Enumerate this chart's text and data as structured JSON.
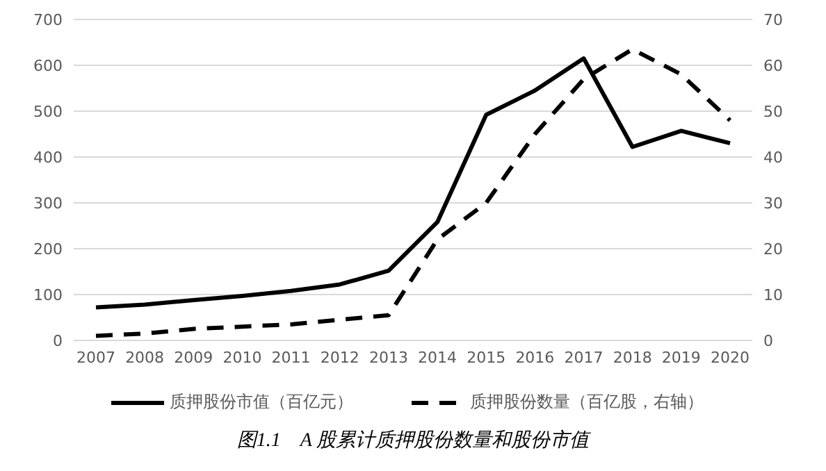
{
  "chart_data": {
    "type": "line",
    "title": "图1.1　A 股累计质押股份数量和股份市值",
    "categories": [
      "2007",
      "2008",
      "2009",
      "2010",
      "2011",
      "2012",
      "2013",
      "2014",
      "2015",
      "2016",
      "2017",
      "2018",
      "2019",
      "2020"
    ],
    "series": [
      {
        "name": "质押股份市值（百亿元）",
        "color": "#000000",
        "line_style": "solid",
        "values": [
          72,
          78,
          88,
          97,
          108,
          122,
          152,
          258,
          492,
          545,
          615,
          422,
          457,
          430
        ]
      },
      {
        "name": "质押股份数量（百亿股，右轴）",
        "color": "#000000",
        "line_style": "dashed",
        "axis": "y2",
        "values": [
          1,
          1.5,
          2.5,
          3,
          3.5,
          4.5,
          5.5,
          22,
          30,
          45,
          57,
          63.5,
          58,
          48
        ]
      }
    ],
    "ylim": [
      0,
      700
    ],
    "yticks": [
      0,
      100,
      200,
      300,
      400,
      500,
      600,
      700
    ],
    "y2lim": [
      0,
      70
    ],
    "y2ticks": [
      0,
      10,
      20,
      30,
      40,
      50,
      60,
      70
    ],
    "grid": "y",
    "legend": "bottom",
    "marker": "none"
  }
}
